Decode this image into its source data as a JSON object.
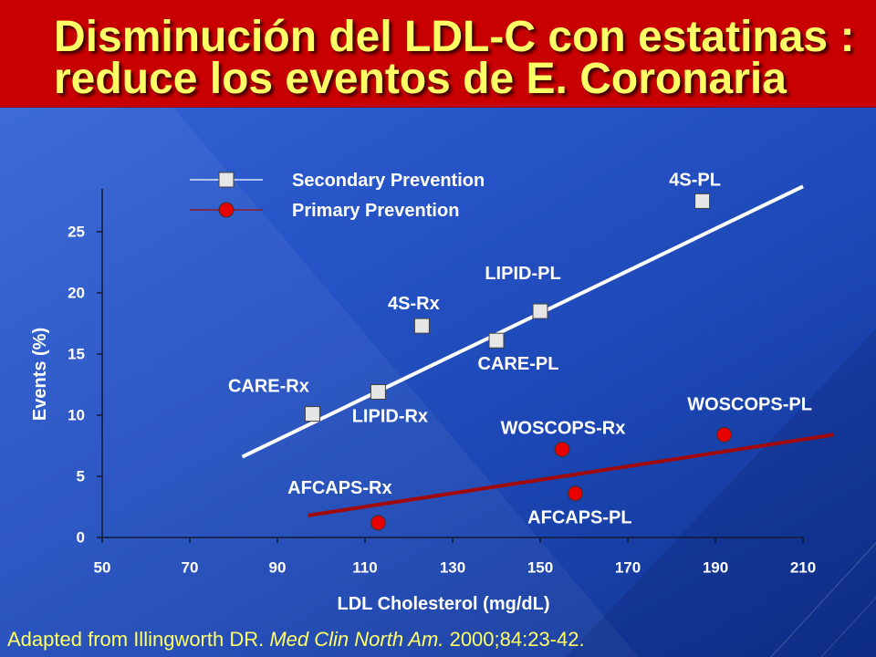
{
  "header": {
    "title_line_1": "Disminución del LDL-C con estatinas :",
    "title_line_2": "reduce los eventos de E. Coronaria"
  },
  "footer": {
    "prefix": "Adapted from Illingworth DR. ",
    "journal": "Med Clin North Am.",
    "suffix": " 2000;84:23-42."
  },
  "colors": {
    "title_banner": "#C80000",
    "title_text": "#FFFF66",
    "footer_text": "#FFFF66",
    "chart_text": "#FFFFFF",
    "axis": "#111A33"
  },
  "chart_data": {
    "type": "scatter",
    "xlabel": "LDL Cholesterol (mg/dL)",
    "ylabel": "Events (%)",
    "xlim": [
      50,
      210
    ],
    "ylim": [
      0,
      28.5
    ],
    "x_ticks": [
      50,
      70,
      90,
      110,
      130,
      150,
      170,
      190,
      210
    ],
    "y_ticks": [
      0,
      5,
      10,
      15,
      20,
      25
    ],
    "grid": false,
    "legend_position": "top-left",
    "series": [
      {
        "name": "Secondary Prevention",
        "marker": "square",
        "marker_color": "#E6E6E6",
        "line_color": "#FFFFFF",
        "points": [
          {
            "label": "CARE-Rx",
            "x": 98,
            "y": 10.1
          },
          {
            "label": "LIPID-Rx",
            "x": 113,
            "y": 11.9
          },
          {
            "label": "4S-Rx",
            "x": 123,
            "y": 17.3
          },
          {
            "label": "CARE-PL",
            "x": 140,
            "y": 16.1
          },
          {
            "label": "LIPID-PL",
            "x": 150,
            "y": 18.5
          },
          {
            "label": "4S-PL",
            "x": 187,
            "y": 27.5
          }
        ],
        "trendline": {
          "x": [
            82,
            210
          ],
          "y": [
            6.6,
            28.7
          ]
        }
      },
      {
        "name": "Primary Prevention",
        "marker": "circle",
        "marker_color": "#E60000",
        "line_color": "#A00A0A",
        "points": [
          {
            "label": "AFCAPS-Rx",
            "x": 113,
            "y": 1.2
          },
          {
            "label": "WOSCOPS-Rx",
            "x": 155,
            "y": 7.2
          },
          {
            "label": "AFCAPS-PL",
            "x": 158,
            "y": 3.6
          },
          {
            "label": "WOSCOPS-PL",
            "x": 192,
            "y": 8.4
          }
        ],
        "trendline": {
          "x": [
            97,
            217
          ],
          "y": [
            1.8,
            8.4
          ]
        }
      }
    ]
  }
}
